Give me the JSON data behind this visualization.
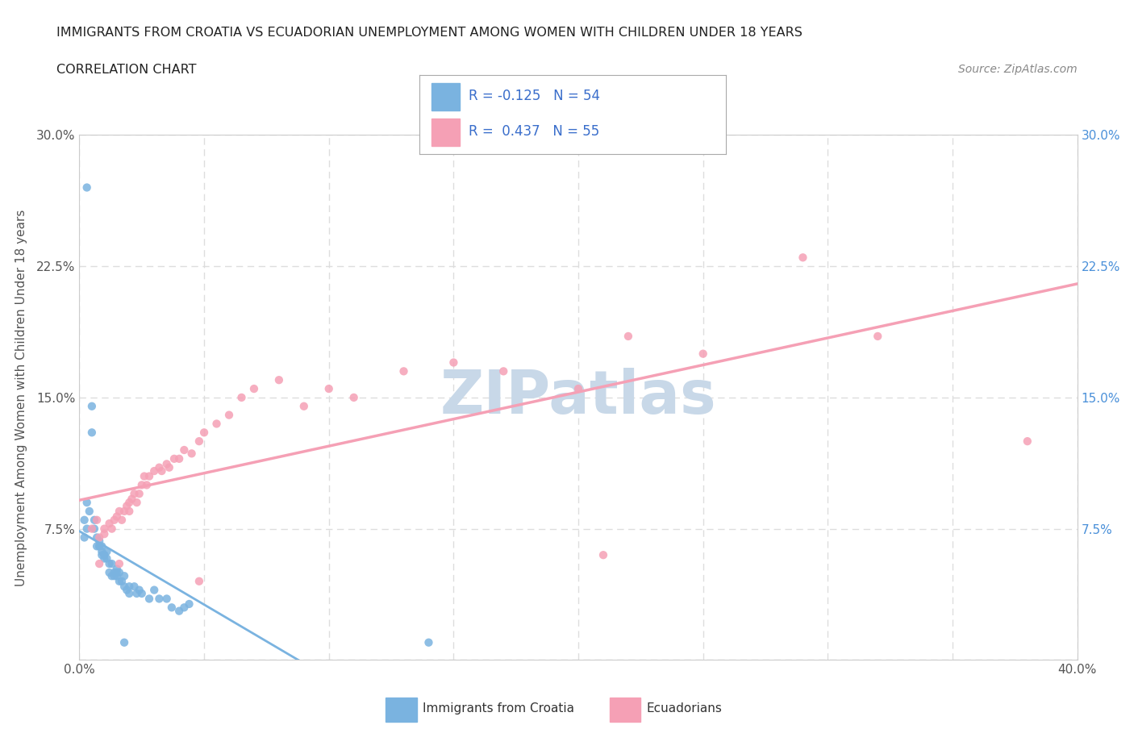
{
  "title_line1": "IMMIGRANTS FROM CROATIA VS ECUADORIAN UNEMPLOYMENT AMONG WOMEN WITH CHILDREN UNDER 18 YEARS",
  "title_line2": "CORRELATION CHART",
  "source_text": "Source: ZipAtlas.com",
  "ylabel": "Unemployment Among Women with Children Under 18 years",
  "xlim": [
    0.0,
    0.4
  ],
  "ylim": [
    0.0,
    0.3
  ],
  "croatia_color": "#7ab3e0",
  "ecuador_color": "#f5a0b5",
  "croatia_R": -0.125,
  "croatia_N": 54,
  "ecuador_R": 0.437,
  "ecuador_N": 55,
  "croatia_scatter_x": [
    0.003,
    0.005,
    0.005,
    0.006,
    0.006,
    0.007,
    0.007,
    0.008,
    0.008,
    0.008,
    0.009,
    0.009,
    0.009,
    0.01,
    0.01,
    0.01,
    0.011,
    0.011,
    0.012,
    0.012,
    0.013,
    0.013,
    0.014,
    0.014,
    0.015,
    0.015,
    0.015,
    0.016,
    0.016,
    0.017,
    0.018,
    0.018,
    0.019,
    0.02,
    0.02,
    0.022,
    0.023,
    0.024,
    0.025,
    0.028,
    0.03,
    0.032,
    0.035,
    0.037,
    0.04,
    0.042,
    0.044,
    0.002,
    0.003,
    0.004,
    0.003,
    0.002,
    0.018,
    0.14
  ],
  "croatia_scatter_y": [
    0.27,
    0.145,
    0.13,
    0.08,
    0.075,
    0.065,
    0.07,
    0.065,
    0.065,
    0.068,
    0.065,
    0.06,
    0.062,
    0.06,
    0.06,
    0.058,
    0.062,
    0.058,
    0.055,
    0.05,
    0.048,
    0.055,
    0.05,
    0.048,
    0.052,
    0.048,
    0.05,
    0.05,
    0.045,
    0.045,
    0.048,
    0.042,
    0.04,
    0.042,
    0.038,
    0.042,
    0.038,
    0.04,
    0.038,
    0.035,
    0.04,
    0.035,
    0.035,
    0.03,
    0.028,
    0.03,
    0.032,
    0.08,
    0.09,
    0.085,
    0.075,
    0.07,
    0.01,
    0.01
  ],
  "ecuador_scatter_x": [
    0.005,
    0.007,
    0.008,
    0.01,
    0.01,
    0.012,
    0.013,
    0.014,
    0.015,
    0.016,
    0.017,
    0.018,
    0.019,
    0.02,
    0.02,
    0.021,
    0.022,
    0.023,
    0.024,
    0.025,
    0.026,
    0.027,
    0.028,
    0.03,
    0.032,
    0.033,
    0.035,
    0.036,
    0.038,
    0.04,
    0.042,
    0.045,
    0.048,
    0.05,
    0.055,
    0.06,
    0.065,
    0.07,
    0.08,
    0.09,
    0.1,
    0.11,
    0.13,
    0.15,
    0.17,
    0.2,
    0.22,
    0.25,
    0.29,
    0.32,
    0.38,
    0.008,
    0.016,
    0.048,
    0.21
  ],
  "ecuador_scatter_y": [
    0.075,
    0.08,
    0.07,
    0.075,
    0.072,
    0.078,
    0.075,
    0.08,
    0.082,
    0.085,
    0.08,
    0.085,
    0.088,
    0.09,
    0.085,
    0.092,
    0.095,
    0.09,
    0.095,
    0.1,
    0.105,
    0.1,
    0.105,
    0.108,
    0.11,
    0.108,
    0.112,
    0.11,
    0.115,
    0.115,
    0.12,
    0.118,
    0.125,
    0.13,
    0.135,
    0.14,
    0.15,
    0.155,
    0.16,
    0.145,
    0.155,
    0.15,
    0.165,
    0.17,
    0.165,
    0.155,
    0.185,
    0.175,
    0.23,
    0.185,
    0.125,
    0.055,
    0.055,
    0.045,
    0.06
  ],
  "grid_color": "#dddddd",
  "background_color": "#ffffff",
  "watermark_text": "ZIPatlas",
  "watermark_color": "#c8d8e8"
}
